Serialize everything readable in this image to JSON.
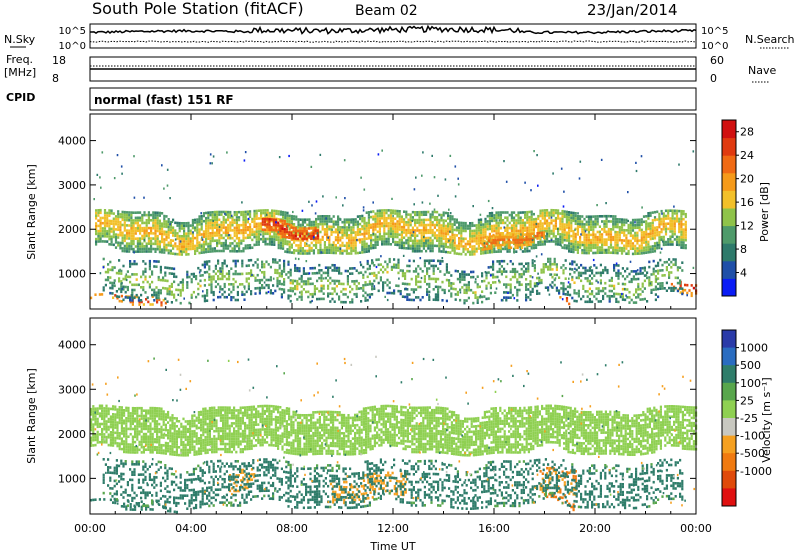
{
  "header": {
    "title": "South Pole Station (fitACF)",
    "beam": "Beam 02",
    "date": "23/Jan/2014"
  },
  "param_panels": {
    "nsky_label": "N.Sky",
    "nsky_ticks": [
      "10^5",
      "10^0"
    ],
    "nsearch_label": "N.Search",
    "nsearch_ticks": [
      "10^5",
      "10^0"
    ],
    "freq_label_1": "Freq.",
    "freq_label_2": "[MHz]",
    "freq_ticks": [
      "18",
      "8"
    ],
    "nave_label": "Nave",
    "nave_ticks": [
      "60",
      "0"
    ],
    "cpid_label": "CPID",
    "cpid_text": "normal (fast) 151 RF"
  },
  "colors": {
    "power_scale": [
      "#0a1cf5",
      "#1f4fa8",
      "#2e7a6b",
      "#4e9a6a",
      "#8fc34a",
      "#f2c02a",
      "#f59a1a",
      "#f06a14",
      "#e03a10",
      "#d01010"
    ],
    "velocity_scale": [
      "#2a3aa8",
      "#2a6cc0",
      "#2f7d6a",
      "#58a64c",
      "#8fd052",
      "#c8c8c0",
      "#f5a020",
      "#f07a10",
      "#e04a0a",
      "#e01010"
    ],
    "background": "#ffffff"
  },
  "chart_data": [
    {
      "type": "heatmap",
      "panel": "power",
      "ylabel": "Slant Range [km]",
      "ylim": [
        200,
        4600
      ],
      "y_ticks": [
        1000,
        2000,
        3000,
        4000
      ],
      "xlim_hours": [
        0,
        24
      ],
      "x_tick_labels": [
        "00:00",
        "04:00",
        "08:00",
        "12:00",
        "16:00",
        "20:00",
        "00:00"
      ],
      "colorbar": {
        "label": "Power [dB]",
        "ticks": [
          4,
          8,
          12,
          16,
          20,
          24,
          28
        ],
        "range": [
          0,
          30
        ]
      },
      "features": [
        {
          "name": "main F-region band",
          "start_hour": 0.2,
          "end_hour": 23.6,
          "range_km": [
            1500,
            2400
          ],
          "power_db": [
            8,
            20
          ]
        },
        {
          "name": "enhanced band 07-09 UT",
          "start_hour": 6.8,
          "end_hour": 9.0,
          "range_km": [
            1800,
            2200
          ],
          "power_db": [
            20,
            28
          ]
        },
        {
          "name": "enhanced band 16-18 UT",
          "start_hour": 15.5,
          "end_hour": 18.0,
          "range_km": [
            1600,
            1900
          ],
          "power_db": [
            16,
            24
          ]
        },
        {
          "name": "near-range E-region echoes",
          "start_hour": 0.0,
          "end_hour": 3.0,
          "range_km": [
            300,
            500
          ],
          "power_db": [
            16,
            28
          ]
        },
        {
          "name": "near-range echoes 18 UT",
          "start_hour": 17.8,
          "end_hour": 19.0,
          "range_km": [
            300,
            450
          ],
          "power_db": [
            20,
            28
          ]
        },
        {
          "name": "near-range echoes 23 UT",
          "start_hour": 23.0,
          "end_hour": 24.0,
          "range_km": [
            450,
            800
          ],
          "power_db": [
            16,
            28
          ]
        },
        {
          "name": "mid-range scatter",
          "start_hour": 0.5,
          "end_hour": 23.5,
          "range_km": [
            400,
            1300
          ],
          "power_db": [
            4,
            16
          ]
        }
      ]
    },
    {
      "type": "heatmap",
      "panel": "velocity",
      "ylabel": "Slant Range [km]",
      "xlabel": "Time UT",
      "ylim": [
        200,
        4600
      ],
      "y_ticks": [
        1000,
        2000,
        3000,
        4000
      ],
      "xlim_hours": [
        0,
        24
      ],
      "x_tick_labels": [
        "00:00",
        "04:00",
        "08:00",
        "12:00",
        "16:00",
        "20:00",
        "00:00"
      ],
      "colorbar": {
        "label": "Velocity [m s⁻¹]",
        "ticks": [
          "1000",
          "500",
          "100",
          "25",
          "-25",
          "-100",
          "-500",
          "-1000"
        ]
      },
      "features": [
        {
          "name": "ground scatter band",
          "start_hour": 0.0,
          "end_hour": 24.0,
          "range_km": [
            1600,
            2600
          ],
          "velocity": [
            -25,
            25
          ]
        },
        {
          "name": "positive flow near range",
          "start_hour": 0.0,
          "end_hour": 4.0,
          "range_km": [
            300,
            500
          ],
          "velocity": [
            100,
            500
          ]
        },
        {
          "name": "negative flow 06 UT",
          "start_hour": 5.5,
          "end_hour": 6.5,
          "range_km": [
            700,
            1200
          ],
          "velocity": [
            -500,
            -100
          ]
        },
        {
          "name": "negative flow 10-12 UT",
          "start_hour": 9.5,
          "end_hour": 12.5,
          "range_km": [
            500,
            1100
          ],
          "velocity": [
            -500,
            -100
          ]
        },
        {
          "name": "negative flow 18-19 UT",
          "start_hour": 17.8,
          "end_hour": 19.2,
          "range_km": [
            300,
            1200
          ],
          "velocity": [
            -1000,
            -100
          ]
        },
        {
          "name": "mixed mid-range flow",
          "start_hour": 0.5,
          "end_hour": 23.5,
          "range_km": [
            400,
            1400
          ],
          "velocity": [
            25,
            500
          ]
        }
      ]
    }
  ]
}
